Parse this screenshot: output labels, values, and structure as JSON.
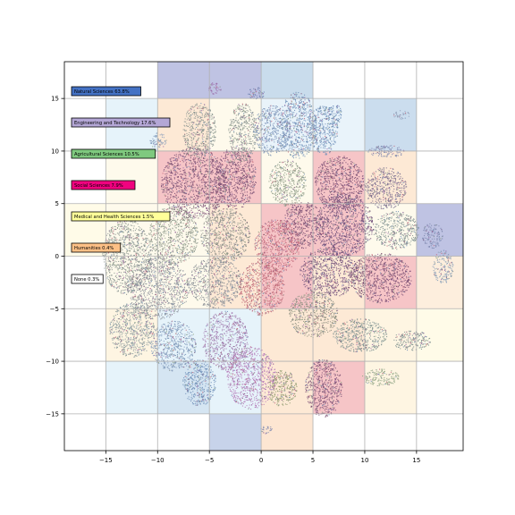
{
  "chart_data": {
    "type": "scatter",
    "title": "",
    "xlabel": "",
    "ylabel": "",
    "xlim": [
      -19,
      19.5
    ],
    "ylim": [
      -18.5,
      18.5
    ],
    "grid": true,
    "xticks": [
      -15,
      -10,
      -5,
      0,
      5,
      10,
      15
    ],
    "yticks": [
      -15,
      -10,
      -5,
      0,
      5,
      10,
      15
    ],
    "xtick_labels": [
      "−15",
      "−10",
      "−5",
      "0",
      "5",
      "10",
      "15"
    ],
    "ytick_labels": [
      "−15",
      "−10",
      "−5",
      "0",
      "5",
      "10",
      "15"
    ],
    "legend_placement": "left",
    "legend": [
      {
        "label": "Natural Sciences 63.8%",
        "color": "#4472c4"
      },
      {
        "label": "Engineering and Technology 17.6%",
        "color": "#b4a7d6"
      },
      {
        "label": "Agricultural Sciences 10.5%",
        "color": "#7fc97f"
      },
      {
        "label": "Social Sciences 7.9%",
        "color": "#f0027f"
      },
      {
        "label": "Medical and Health Sciences 1.5%",
        "color": "#ffff99"
      },
      {
        "label": "Humanities 0.4%",
        "color": "#fdc086"
      },
      {
        "label": "None 0.3%",
        "color": "#ffffff"
      }
    ],
    "grid_cells": [
      {
        "col": -10,
        "row": 15,
        "color": "#bfc3e3"
      },
      {
        "col": -5,
        "row": 15,
        "color": "#bfc3e3"
      },
      {
        "col": 0,
        "row": 15,
        "color": "#c9dcec"
      },
      {
        "col": -15,
        "row": 10,
        "color": "#e6f3fa"
      },
      {
        "col": -10,
        "row": 10,
        "color": "#fde9d5"
      },
      {
        "col": -5,
        "row": 10,
        "color": "#fefaec"
      },
      {
        "col": 0,
        "row": 10,
        "color": "#e9f3fa"
      },
      {
        "col": 5,
        "row": 10,
        "color": "#e9f3fa"
      },
      {
        "col": 10,
        "row": 10,
        "color": "#cbddee"
      },
      {
        "col": -15,
        "row": 5,
        "color": "#fefaec"
      },
      {
        "col": -10,
        "row": 5,
        "color": "#f6c5c7"
      },
      {
        "col": -5,
        "row": 5,
        "color": "#f6c5c7"
      },
      {
        "col": 0,
        "row": 5,
        "color": "#fefaec"
      },
      {
        "col": 5,
        "row": 5,
        "color": "#f6c5c7"
      },
      {
        "col": 10,
        "row": 5,
        "color": "#fde9d5"
      },
      {
        "col": -19,
        "row": 0,
        "color": "#fffbe8"
      },
      {
        "col": -15,
        "row": 0,
        "color": "#fefaec"
      },
      {
        "col": -10,
        "row": 0,
        "color": "#fefaec"
      },
      {
        "col": -5,
        "row": 0,
        "color": "#fde9d5"
      },
      {
        "col": 0,
        "row": 0,
        "color": "#f6c5c7"
      },
      {
        "col": 5,
        "row": 0,
        "color": "#f6c5c7"
      },
      {
        "col": 10,
        "row": 0,
        "color": "#fefaec"
      },
      {
        "col": 15,
        "row": 0,
        "color": "#bfc3e3"
      },
      {
        "col": -15,
        "row": -5,
        "color": "#fefaec"
      },
      {
        "col": -10,
        "row": -5,
        "color": "#fefaec"
      },
      {
        "col": -5,
        "row": -5,
        "color": "#fde9d5"
      },
      {
        "col": 0,
        "row": -5,
        "color": "#f6c5c7"
      },
      {
        "col": 5,
        "row": -5,
        "color": "#fde9d5"
      },
      {
        "col": 10,
        "row": -5,
        "color": "#f6c5c7"
      },
      {
        "col": 15,
        "row": -5,
        "color": "#fdeedd"
      },
      {
        "col": -15,
        "row": -10,
        "color": "#fef5e2"
      },
      {
        "col": -10,
        "row": -10,
        "color": "#e6f3fa"
      },
      {
        "col": -5,
        "row": -10,
        "color": "#e6f3fa"
      },
      {
        "col": 0,
        "row": -10,
        "color": "#fde9d5"
      },
      {
        "col": 5,
        "row": -10,
        "color": "#fde9d5"
      },
      {
        "col": 10,
        "row": -10,
        "color": "#fef5e2"
      },
      {
        "col": 15,
        "row": -10,
        "color": "#fffbe8"
      },
      {
        "col": -15,
        "row": -15,
        "color": "#e6f3fa"
      },
      {
        "col": -10,
        "row": -15,
        "color": "#d5e5f2"
      },
      {
        "col": -5,
        "row": -15,
        "color": "#e6f3fa"
      },
      {
        "col": 0,
        "row": -15,
        "color": "#fde9d5"
      },
      {
        "col": 5,
        "row": -15,
        "color": "#f6c5c7"
      },
      {
        "col": 10,
        "row": -15,
        "color": "#fef5e2"
      },
      {
        "col": -5,
        "row": -20,
        "color": "#c7d3ea"
      },
      {
        "col": 0,
        "row": -20,
        "color": "#fde6d2"
      }
    ],
    "clusters": [
      {
        "x": -6.5,
        "y": 7.0,
        "rx": 3.2,
        "ry": 3.4,
        "color": "#7a4f73"
      },
      {
        "x": -2.5,
        "y": 7.5,
        "rx": 2.0,
        "ry": 3.0,
        "color": "#7a4f73"
      },
      {
        "x": -1.8,
        "y": 11.8,
        "rx": 1.4,
        "ry": 2.8,
        "color": "#8a9490"
      },
      {
        "x": 3.5,
        "y": 12.5,
        "rx": 1.8,
        "ry": 3.2,
        "color": "#6f8fb8"
      },
      {
        "x": 6.0,
        "y": 12.0,
        "rx": 1.4,
        "ry": 2.4,
        "color": "#6f8fb8"
      },
      {
        "x": 1.0,
        "y": 12.0,
        "rx": 1.8,
        "ry": 2.4,
        "color": "#7c94b8"
      },
      {
        "x": -6.0,
        "y": 12.0,
        "rx": 1.6,
        "ry": 2.6,
        "color": "#8a9490"
      },
      {
        "x": 2.5,
        "y": 7.0,
        "rx": 1.8,
        "ry": 2.2,
        "color": "#8c9a86"
      },
      {
        "x": 7.5,
        "y": 7.0,
        "rx": 2.4,
        "ry": 2.6,
        "color": "#7a4f73"
      },
      {
        "x": 12.0,
        "y": 6.5,
        "rx": 2.0,
        "ry": 2.0,
        "color": "#7a6f8f"
      },
      {
        "x": 8.0,
        "y": 3.0,
        "rx": 2.8,
        "ry": 3.0,
        "color": "#6a4a78"
      },
      {
        "x": 4.0,
        "y": 3.0,
        "rx": 2.0,
        "ry": 2.2,
        "color": "#7a4f73"
      },
      {
        "x": 13.0,
        "y": 2.5,
        "rx": 2.2,
        "ry": 1.8,
        "color": "#7f9090"
      },
      {
        "x": 11.5,
        "y": -2.0,
        "rx": 3.0,
        "ry": 2.4,
        "color": "#7a4f73"
      },
      {
        "x": 6.5,
        "y": -1.5,
        "rx": 2.8,
        "ry": 2.4,
        "color": "#6a4a78"
      },
      {
        "x": 1.5,
        "y": 1.0,
        "rx": 2.2,
        "ry": 2.6,
        "color": "#c1667a"
      },
      {
        "x": -3.5,
        "y": 2.0,
        "rx": 2.4,
        "ry": 2.6,
        "color": "#8a8d86"
      },
      {
        "x": -8.5,
        "y": 2.0,
        "rx": 2.4,
        "ry": 2.8,
        "color": "#8f9a8c"
      },
      {
        "x": -13.0,
        "y": 0.0,
        "rx": 2.4,
        "ry": 3.6,
        "color": "#8a9490"
      },
      {
        "x": -10.0,
        "y": -3.0,
        "rx": 3.0,
        "ry": 3.0,
        "color": "#8a8f9a"
      },
      {
        "x": -4.5,
        "y": -2.5,
        "rx": 2.6,
        "ry": 2.4,
        "color": "#8b8f96"
      },
      {
        "x": 0.0,
        "y": -3.0,
        "rx": 2.2,
        "ry": 2.6,
        "color": "#c06a78"
      },
      {
        "x": 5.0,
        "y": -5.5,
        "rx": 2.4,
        "ry": 2.2,
        "color": "#8a8d7e"
      },
      {
        "x": 9.5,
        "y": -7.5,
        "rx": 2.6,
        "ry": 1.6,
        "color": "#7a8f8f"
      },
      {
        "x": 14.5,
        "y": -8.0,
        "rx": 1.8,
        "ry": 1.0,
        "color": "#7f9090"
      },
      {
        "x": -12.5,
        "y": -7.0,
        "rx": 2.2,
        "ry": 2.6,
        "color": "#8a9a9e"
      },
      {
        "x": -8.5,
        "y": -8.5,
        "rx": 2.2,
        "ry": 2.4,
        "color": "#7f98b8"
      },
      {
        "x": -3.5,
        "y": -8.0,
        "rx": 2.2,
        "ry": 2.8,
        "color": "#a57fb2"
      },
      {
        "x": -1.0,
        "y": -11.5,
        "rx": 2.4,
        "ry": 3.0,
        "color": "#b57ab8"
      },
      {
        "x": -6.0,
        "y": -12.0,
        "rx": 1.6,
        "ry": 2.2,
        "color": "#6f8fb8"
      },
      {
        "x": 2.0,
        "y": -12.5,
        "rx": 1.4,
        "ry": 1.8,
        "color": "#8f9b6f"
      },
      {
        "x": 6.0,
        "y": -12.5,
        "rx": 1.8,
        "ry": 2.8,
        "color": "#7a4f73"
      },
      {
        "x": 11.5,
        "y": -11.5,
        "rx": 1.8,
        "ry": 0.8,
        "color": "#8fa584"
      },
      {
        "x": 12.0,
        "y": 10.0,
        "rx": 1.8,
        "ry": 0.6,
        "color": "#7f88b0"
      },
      {
        "x": 7.0,
        "y": 13.5,
        "rx": 0.8,
        "ry": 1.0,
        "color": "#6f8fb8"
      },
      {
        "x": -4.5,
        "y": 16.0,
        "rx": 0.6,
        "ry": 0.6,
        "color": "#9a6aa8"
      },
      {
        "x": -0.5,
        "y": 15.5,
        "rx": 0.8,
        "ry": 0.6,
        "color": "#6f7fb0"
      },
      {
        "x": -10.0,
        "y": 11.0,
        "rx": 0.8,
        "ry": 0.8,
        "color": "#7f98b8"
      },
      {
        "x": 16.5,
        "y": 2.0,
        "rx": 1.0,
        "ry": 1.2,
        "color": "#7f88b0"
      },
      {
        "x": 17.5,
        "y": -1.0,
        "rx": 1.0,
        "ry": 1.6,
        "color": "#8aa0b8"
      },
      {
        "x": 0.5,
        "y": -16.5,
        "rx": 0.6,
        "ry": 0.4,
        "color": "#7f88b0"
      },
      {
        "x": 13.5,
        "y": 13.5,
        "rx": 0.8,
        "ry": 0.4,
        "color": "#8f9fb8"
      }
    ]
  }
}
